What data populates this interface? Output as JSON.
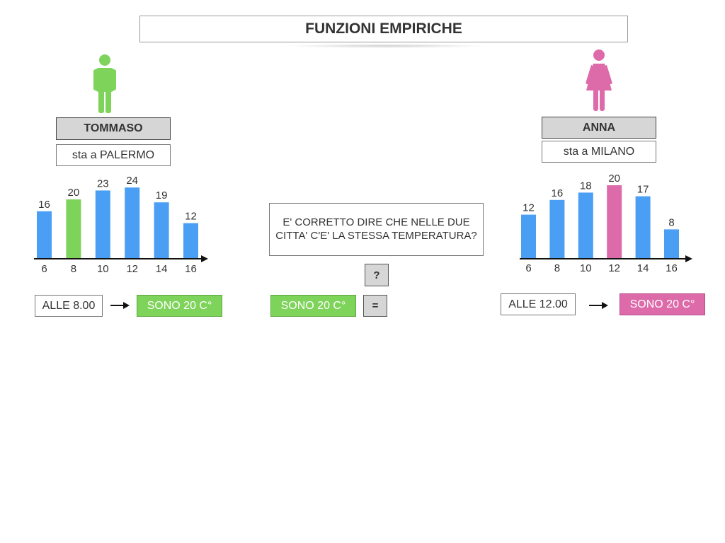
{
  "title": "FUNZIONI EMPIRICHE",
  "left": {
    "name": "TOMMASO",
    "city": "sta a PALERMO",
    "time": "ALLE 8.00",
    "result": "SONO 20 C°"
  },
  "right": {
    "name": "ANNA",
    "city": "sta a MILANO",
    "time": "ALLE 12.00",
    "result": "SONO 20 C°"
  },
  "center": {
    "question": "E' CORRETTO DIRE CHE NELLE DUE CITTA' C'E' LA STESSA TEMPERATURA?",
    "question_mark": "?",
    "result": "SONO 20 C°",
    "equals": "="
  },
  "colors": {
    "blue": "#4a9ff5",
    "green": "#7ed35a",
    "pink": "#dd6baa"
  },
  "chart_data": [
    {
      "type": "bar",
      "categories": [
        "6",
        "8",
        "10",
        "12",
        "14",
        "16"
      ],
      "values": [
        16,
        20,
        23,
        24,
        19,
        12
      ],
      "highlight_index": 1,
      "highlight_color": "#7ed35a",
      "bar_color": "#4a9ff5"
    },
    {
      "type": "bar",
      "categories": [
        "6",
        "8",
        "10",
        "12",
        "14",
        "16"
      ],
      "values": [
        12,
        16,
        18,
        20,
        17,
        8
      ],
      "highlight_index": 3,
      "highlight_color": "#dd6baa",
      "bar_color": "#4a9ff5"
    }
  ]
}
